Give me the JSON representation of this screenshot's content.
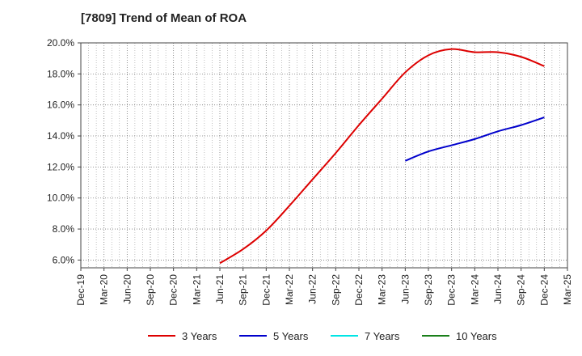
{
  "header": {
    "title": "[7809]  Trend of Mean of ROA"
  },
  "chart_data": {
    "type": "line",
    "title": "[7809]  Trend of Mean of ROA",
    "xlabel": "",
    "ylabel": "",
    "x": [
      "Dec-19",
      "Mar-20",
      "Jun-20",
      "Sep-20",
      "Dec-20",
      "Mar-21",
      "Jun-21",
      "Sep-21",
      "Dec-21",
      "Mar-22",
      "Jun-22",
      "Sep-22",
      "Dec-22",
      "Mar-23",
      "Jun-23",
      "Sep-23",
      "Dec-23",
      "Mar-24",
      "Jun-24",
      "Sep-24",
      "Dec-24",
      "Mar-25"
    ],
    "y_ticks": [
      "6.0%",
      "8.0%",
      "10.0%",
      "12.0%",
      "14.0%",
      "16.0%",
      "18.0%",
      "20.0%"
    ],
    "ylim": [
      5.5,
      20.0
    ],
    "grid": true,
    "legend_position": "bottom",
    "series": [
      {
        "name": "3 Years",
        "color": "#dd0000",
        "values": [
          null,
          null,
          null,
          null,
          null,
          null,
          5.8,
          6.7,
          7.9,
          9.5,
          11.2,
          12.9,
          14.7,
          16.4,
          18.1,
          19.2,
          19.6,
          19.4,
          19.4,
          19.1,
          18.5,
          null
        ]
      },
      {
        "name": "5 Years",
        "color": "#0000cc",
        "values": [
          null,
          null,
          null,
          null,
          null,
          null,
          null,
          null,
          null,
          null,
          null,
          null,
          null,
          null,
          12.4,
          13.0,
          13.4,
          13.8,
          14.3,
          14.7,
          15.2,
          null
        ]
      },
      {
        "name": "7 Years",
        "color": "#00e5e5",
        "values": [
          null,
          null,
          null,
          null,
          null,
          null,
          null,
          null,
          null,
          null,
          null,
          null,
          null,
          null,
          null,
          null,
          null,
          null,
          null,
          null,
          null,
          null
        ]
      },
      {
        "name": "10 Years",
        "color": "#1a7f1a",
        "values": [
          null,
          null,
          null,
          null,
          null,
          null,
          null,
          null,
          null,
          null,
          null,
          null,
          null,
          null,
          null,
          null,
          null,
          null,
          null,
          null,
          null,
          null
        ]
      }
    ]
  }
}
